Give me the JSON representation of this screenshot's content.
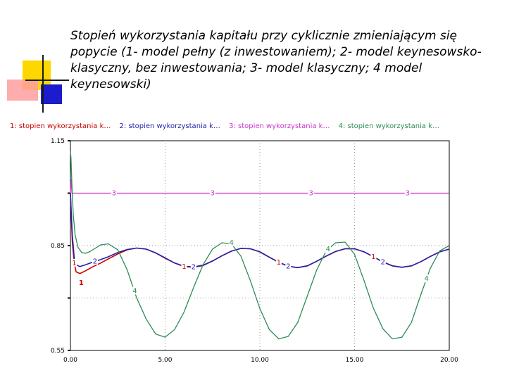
{
  "title": "Stopień wykorzystania kapitału przy cyklicznie zmieniającym się popycie (1- model pełny (z inwestowaniem); 2- model keynesowsko-klasyczny, bez inwestowania; 3- model klasyczny; 4 model keynesowski)",
  "legend": [
    {
      "label": "1: stopien wykorzystania k…",
      "color": "#cc0000"
    },
    {
      "label": "2: stopien wykorzystania k…",
      "color": "#2222aa"
    },
    {
      "label": "3: stopien wykorzystania k…",
      "color": "#cc33cc"
    },
    {
      "label": "4: stopien wykorzystania k…",
      "color": "#2e8b57"
    }
  ],
  "chart_data": {
    "type": "line",
    "title": "",
    "xlabel": "",
    "ylabel": "",
    "xlim": [
      0,
      20
    ],
    "ylim": [
      0.55,
      1.15
    ],
    "x_ticks": [
      "0.00",
      "5.00",
      "10.00",
      "15.00",
      "20.00"
    ],
    "y_ticks": [
      "1.15",
      "0.85",
      "0.55"
    ],
    "grid": true,
    "legend_position": "top",
    "series": [
      {
        "name": "1: stopien wykorzystania k…",
        "color": "#cc0000",
        "x": [
          0,
          0.05,
          0.1,
          0.2,
          0.3,
          0.5,
          0.8,
          1.2,
          1.6,
          2,
          2.5,
          3,
          3.5,
          4,
          4.5,
          5,
          5.5,
          6,
          6.5,
          7,
          7.5,
          8,
          8.5,
          9,
          9.5,
          10,
          10.5,
          11,
          11.5,
          12,
          12.5,
          13,
          13.5,
          14,
          14.5,
          15,
          15.5,
          16,
          16.5,
          17,
          17.5,
          18,
          18.5,
          19,
          19.5,
          20
        ],
        "y": [
          1.0,
          0.93,
          0.86,
          0.8,
          0.775,
          0.77,
          0.778,
          0.79,
          0.8,
          0.812,
          0.826,
          0.838,
          0.843,
          0.84,
          0.829,
          0.814,
          0.8,
          0.79,
          0.788,
          0.793,
          0.806,
          0.821,
          0.834,
          0.842,
          0.841,
          0.832,
          0.817,
          0.802,
          0.791,
          0.787,
          0.792,
          0.805,
          0.82,
          0.833,
          0.841,
          0.841,
          0.832,
          0.818,
          0.803,
          0.792,
          0.788,
          0.792,
          0.804,
          0.819,
          0.832,
          0.84
        ]
      },
      {
        "name": "2: stopien wykorzystania k…",
        "color": "#2222aa",
        "x": [
          0,
          0.05,
          0.1,
          0.2,
          0.3,
          0.5,
          0.8,
          1.2,
          1.6,
          2,
          2.5,
          3,
          3.5,
          4,
          4.5,
          5,
          5.5,
          6,
          6.5,
          7,
          7.5,
          8,
          8.5,
          9,
          9.5,
          10,
          10.5,
          11,
          11.5,
          12,
          12.5,
          13,
          13.5,
          14,
          14.5,
          15,
          15.5,
          16,
          16.5,
          17,
          17.5,
          18,
          18.5,
          19,
          19.5,
          20
        ],
        "y": [
          1.0,
          0.94,
          0.88,
          0.815,
          0.795,
          0.79,
          0.795,
          0.803,
          0.81,
          0.818,
          0.83,
          0.839,
          0.843,
          0.84,
          0.829,
          0.815,
          0.8,
          0.791,
          0.789,
          0.794,
          0.806,
          0.821,
          0.834,
          0.842,
          0.841,
          0.832,
          0.817,
          0.802,
          0.791,
          0.787,
          0.792,
          0.805,
          0.82,
          0.833,
          0.841,
          0.841,
          0.832,
          0.818,
          0.803,
          0.792,
          0.788,
          0.792,
          0.804,
          0.819,
          0.832,
          0.84
        ]
      },
      {
        "name": "3: stopien wykorzystania k…",
        "color": "#cc33cc",
        "x": [
          0,
          0.03,
          0.08,
          0.2,
          5,
          10,
          15,
          20
        ],
        "y": [
          1.0,
          1.04,
          1.0,
          1.0,
          1.0,
          1.0,
          1.0,
          1.0
        ]
      },
      {
        "name": "4: stopien wykorzystania k…",
        "color": "#2e8b57",
        "x": [
          0,
          0.03,
          0.08,
          0.15,
          0.25,
          0.4,
          0.6,
          0.8,
          1.0,
          1.3,
          1.6,
          2.0,
          2.5,
          3.0,
          3.5,
          4.0,
          4.5,
          5.0,
          5.5,
          6.0,
          6.5,
          7.0,
          7.5,
          8.0,
          8.5,
          9.0,
          9.5,
          10.0,
          10.5,
          11.0,
          11.5,
          12.0,
          12.5,
          13.0,
          13.5,
          14.0,
          14.5,
          15.0,
          15.5,
          16.0,
          16.5,
          17.0,
          17.5,
          18.0,
          18.5,
          19.0,
          19.5,
          20.0
        ],
        "y": [
          1.12,
          1.1,
          1.02,
          0.94,
          0.88,
          0.845,
          0.83,
          0.828,
          0.832,
          0.842,
          0.852,
          0.855,
          0.838,
          0.78,
          0.7,
          0.64,
          0.597,
          0.588,
          0.61,
          0.66,
          0.73,
          0.795,
          0.84,
          0.858,
          0.855,
          0.82,
          0.75,
          0.67,
          0.61,
          0.583,
          0.59,
          0.63,
          0.705,
          0.78,
          0.835,
          0.858,
          0.86,
          0.825,
          0.75,
          0.67,
          0.612,
          0.583,
          0.588,
          0.63,
          0.71,
          0.785,
          0.835,
          0.85
        ]
      }
    ],
    "curve_markers": [
      {
        "series": "1",
        "color": "#cc0000",
        "points": [
          [
            0.2,
            0.8
          ],
          [
            6.0,
            0.79
          ],
          [
            11.0,
            0.802
          ],
          [
            16.0,
            0.818
          ]
        ]
      },
      {
        "series": "2",
        "color": "#2222aa",
        "points": [
          [
            1.3,
            0.805
          ],
          [
            6.5,
            0.789
          ],
          [
            11.5,
            0.791
          ],
          [
            16.5,
            0.803
          ]
        ]
      },
      {
        "series": "3",
        "color": "#cc33cc",
        "points": [
          [
            2.3,
            1.0
          ],
          [
            7.5,
            1.0
          ],
          [
            12.7,
            1.0
          ],
          [
            17.8,
            1.0
          ]
        ]
      },
      {
        "series": "4",
        "color": "#2e8b57",
        "points": [
          [
            3.4,
            0.72
          ],
          [
            8.5,
            0.858
          ],
          [
            13.6,
            0.84
          ],
          [
            18.8,
            0.755
          ]
        ]
      }
    ],
    "extra_label": {
      "text": "1",
      "x": 0.2,
      "y": 0.765,
      "color": "#cc0000"
    }
  }
}
